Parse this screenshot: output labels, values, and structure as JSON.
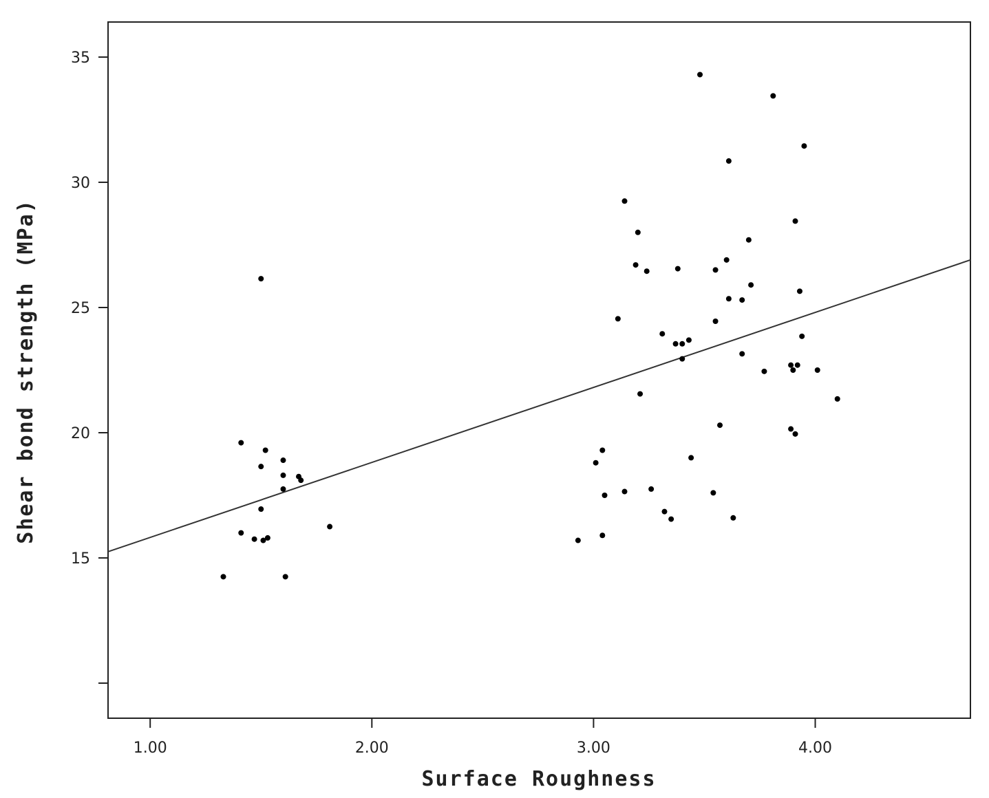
{
  "chart_data": {
    "type": "scatter",
    "title": "",
    "xlabel": "Surface Roughness",
    "ylabel": "Shear bond strength (MPa)",
    "xlim": [
      0.81,
      4.7
    ],
    "ylim": [
      8.6,
      36.4
    ],
    "x_ticks": [
      1.0,
      2.0,
      3.0,
      4.0
    ],
    "x_tick_labels": [
      "1.00",
      "2.00",
      "3.00",
      "4.00"
    ],
    "y_ticks": [
      10,
      15,
      20,
      25,
      30,
      35
    ],
    "y_tick_labels": [
      "",
      "15",
      "20",
      "25",
      "30",
      "35"
    ],
    "grid": false,
    "legend": "none",
    "marker_color": "#000000",
    "line_color": "#333333",
    "fit_line": {
      "type": "linear",
      "x": [
        0.81,
        4.7
      ],
      "y": [
        15.25,
        26.9
      ]
    },
    "points": [
      {
        "x": 1.33,
        "y": 14.25
      },
      {
        "x": 1.41,
        "y": 19.6
      },
      {
        "x": 1.41,
        "y": 16.0
      },
      {
        "x": 1.47,
        "y": 15.75
      },
      {
        "x": 1.5,
        "y": 26.15
      },
      {
        "x": 1.5,
        "y": 18.65
      },
      {
        "x": 1.5,
        "y": 16.95
      },
      {
        "x": 1.51,
        "y": 15.7
      },
      {
        "x": 1.52,
        "y": 19.3
      },
      {
        "x": 1.53,
        "y": 15.8
      },
      {
        "x": 1.6,
        "y": 18.9
      },
      {
        "x": 1.6,
        "y": 18.3
      },
      {
        "x": 1.6,
        "y": 17.75
      },
      {
        "x": 1.61,
        "y": 14.25
      },
      {
        "x": 1.67,
        "y": 18.25
      },
      {
        "x": 1.68,
        "y": 18.1
      },
      {
        "x": 1.81,
        "y": 16.25
      },
      {
        "x": 2.93,
        "y": 15.7
      },
      {
        "x": 3.01,
        "y": 18.8
      },
      {
        "x": 3.04,
        "y": 19.3
      },
      {
        "x": 3.04,
        "y": 15.9
      },
      {
        "x": 3.05,
        "y": 17.5
      },
      {
        "x": 3.11,
        "y": 24.55
      },
      {
        "x": 3.14,
        "y": 29.25
      },
      {
        "x": 3.14,
        "y": 17.65
      },
      {
        "x": 3.19,
        "y": 26.7
      },
      {
        "x": 3.2,
        "y": 28.0
      },
      {
        "x": 3.21,
        "y": 21.55
      },
      {
        "x": 3.24,
        "y": 26.45
      },
      {
        "x": 3.26,
        "y": 17.75
      },
      {
        "x": 3.31,
        "y": 23.95
      },
      {
        "x": 3.32,
        "y": 16.85
      },
      {
        "x": 3.35,
        "y": 16.55
      },
      {
        "x": 3.37,
        "y": 23.55
      },
      {
        "x": 3.38,
        "y": 26.55
      },
      {
        "x": 3.4,
        "y": 23.55
      },
      {
        "x": 3.4,
        "y": 22.95
      },
      {
        "x": 3.43,
        "y": 23.7
      },
      {
        "x": 3.44,
        "y": 19.0
      },
      {
        "x": 3.48,
        "y": 34.3
      },
      {
        "x": 3.54,
        "y": 17.6
      },
      {
        "x": 3.55,
        "y": 24.45
      },
      {
        "x": 3.55,
        "y": 26.5
      },
      {
        "x": 3.57,
        "y": 20.3
      },
      {
        "x": 3.6,
        "y": 26.9
      },
      {
        "x": 3.61,
        "y": 25.35
      },
      {
        "x": 3.61,
        "y": 30.85
      },
      {
        "x": 3.63,
        "y": 16.6
      },
      {
        "x": 3.67,
        "y": 25.3
      },
      {
        "x": 3.67,
        "y": 23.15
      },
      {
        "x": 3.7,
        "y": 27.7
      },
      {
        "x": 3.71,
        "y": 25.9
      },
      {
        "x": 3.77,
        "y": 22.45
      },
      {
        "x": 3.81,
        "y": 33.45
      },
      {
        "x": 3.89,
        "y": 22.7
      },
      {
        "x": 3.89,
        "y": 20.15
      },
      {
        "x": 3.9,
        "y": 22.5
      },
      {
        "x": 3.91,
        "y": 28.45
      },
      {
        "x": 3.91,
        "y": 19.95
      },
      {
        "x": 3.92,
        "y": 22.7
      },
      {
        "x": 3.93,
        "y": 25.65
      },
      {
        "x": 3.94,
        "y": 23.85
      },
      {
        "x": 3.95,
        "y": 31.45
      },
      {
        "x": 4.01,
        "y": 22.5
      },
      {
        "x": 4.1,
        "y": 21.35
      }
    ]
  }
}
